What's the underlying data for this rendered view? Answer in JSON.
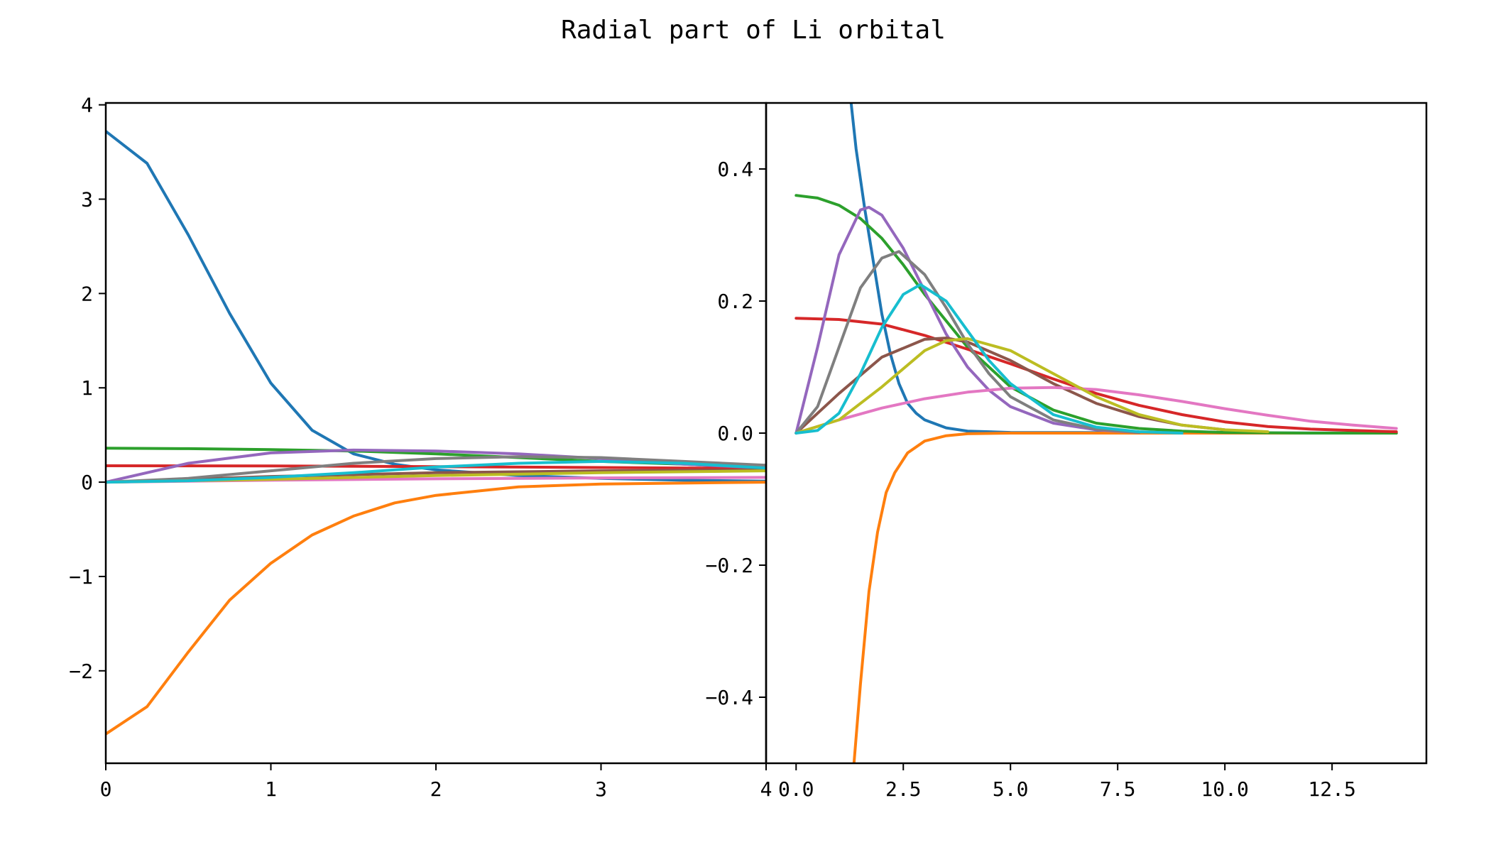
{
  "figure": {
    "title": "Radial part of Li orbital"
  },
  "chart_data": [
    {
      "type": "line",
      "panel": "left",
      "title": "",
      "xlabel": "",
      "ylabel": "",
      "xlim": [
        0,
        4
      ],
      "ylim": [
        -2.98,
        4.02
      ],
      "grid": false,
      "xticks": [
        {
          "value": 0,
          "label": "0"
        },
        {
          "value": 1,
          "label": "1"
        },
        {
          "value": 2,
          "label": "2"
        },
        {
          "value": 3,
          "label": "3"
        },
        {
          "value": 4,
          "label": "4"
        }
      ],
      "yticks": [
        {
          "value": -2,
          "label": "−2"
        },
        {
          "value": -1,
          "label": "−1"
        },
        {
          "value": 0,
          "label": "0"
        },
        {
          "value": 1,
          "label": "1"
        },
        {
          "value": 2,
          "label": "2"
        },
        {
          "value": 3,
          "label": "3"
        },
        {
          "value": 4,
          "label": "4"
        }
      ],
      "series": [
        {
          "color": "#1f77b4",
          "x": [
            0,
            0.25,
            0.5,
            0.75,
            1,
            1.25,
            1.5,
            1.75,
            2,
            2.5,
            3,
            3.5,
            4
          ],
          "y": [
            3.72,
            3.38,
            2.62,
            1.79,
            1.05,
            0.55,
            0.3,
            0.19,
            0.13,
            0.07,
            0.04,
            0.02,
            0.01
          ]
        },
        {
          "color": "#ff7f0e",
          "x": [
            0,
            0.25,
            0.5,
            0.75,
            1,
            1.25,
            1.5,
            1.75,
            2,
            2.5,
            3,
            3.5,
            4
          ],
          "y": [
            -2.67,
            -2.38,
            -1.8,
            -1.25,
            -0.86,
            -0.56,
            -0.36,
            -0.22,
            -0.14,
            -0.05,
            -0.02,
            -0.01,
            0
          ]
        },
        {
          "color": "#2ca02c",
          "x": [
            0,
            0.5,
            1,
            1.5,
            2,
            2.5,
            3,
            3.5,
            4
          ],
          "y": [
            0.36,
            0.355,
            0.345,
            0.33,
            0.3,
            0.26,
            0.22,
            0.19,
            0.15
          ]
        },
        {
          "color": "#d62728",
          "x": [
            0,
            1,
            2,
            3,
            4
          ],
          "y": [
            0.174,
            0.172,
            0.165,
            0.155,
            0.145
          ]
        },
        {
          "color": "#9467bd",
          "x": [
            0,
            0.5,
            1,
            1.5,
            2,
            2.5,
            3,
            3.5,
            4
          ],
          "y": [
            0,
            0.2,
            0.31,
            0.34,
            0.33,
            0.3,
            0.25,
            0.19,
            0.15
          ]
        },
        {
          "color": "#8c564b",
          "x": [
            0,
            1,
            2,
            3,
            4
          ],
          "y": [
            0,
            0.06,
            0.1,
            0.12,
            0.13
          ]
        },
        {
          "color": "#e377c2",
          "x": [
            0,
            1,
            2,
            3,
            4
          ],
          "y": [
            0,
            0.02,
            0.035,
            0.045,
            0.05
          ]
        },
        {
          "color": "#7f7f7f",
          "x": [
            0,
            0.5,
            1,
            1.5,
            2,
            2.5,
            3,
            3.5,
            4
          ],
          "y": [
            0,
            0.04,
            0.12,
            0.2,
            0.25,
            0.27,
            0.26,
            0.22,
            0.18
          ]
        },
        {
          "color": "#bcbd22",
          "x": [
            0,
            1,
            2,
            3,
            4
          ],
          "y": [
            0,
            0.03,
            0.07,
            0.1,
            0.12
          ]
        },
        {
          "color": "#17becf",
          "x": [
            0,
            0.5,
            1,
            1.5,
            2,
            2.5,
            3,
            3.5,
            4
          ],
          "y": [
            0,
            0.015,
            0.05,
            0.1,
            0.16,
            0.2,
            0.22,
            0.2,
            0.15
          ]
        }
      ]
    },
    {
      "type": "line",
      "panel": "right",
      "title": "",
      "xlabel": "",
      "ylabel": "",
      "xlim": [
        -0.7,
        14.7
      ],
      "ylim": [
        -0.5,
        0.5
      ],
      "grid": false,
      "xticks": [
        {
          "value": 0,
          "label": "0.0"
        },
        {
          "value": 2.5,
          "label": "2.5"
        },
        {
          "value": 5,
          "label": "5.0"
        },
        {
          "value": 7.5,
          "label": "7.5"
        },
        {
          "value": 10,
          "label": "10.0"
        },
        {
          "value": 12.5,
          "label": "12.5"
        }
      ],
      "yticks": [
        {
          "value": -0.4,
          "label": "−0.4"
        },
        {
          "value": -0.2,
          "label": "−0.2"
        },
        {
          "value": 0,
          "label": "0.0"
        },
        {
          "value": 0.2,
          "label": "0.2"
        },
        {
          "value": 0.4,
          "label": "0.4"
        }
      ],
      "series": [
        {
          "color": "#1f77b4",
          "x": [
            1.2,
            1.4,
            1.6,
            1.8,
            2,
            2.2,
            2.4,
            2.6,
            2.8,
            3,
            3.5,
            4,
            5,
            14
          ],
          "y": [
            0.55,
            0.43,
            0.34,
            0.26,
            0.18,
            0.12,
            0.075,
            0.045,
            0.03,
            0.02,
            0.008,
            0.003,
            0.001,
            0
          ]
        },
        {
          "color": "#ff7f0e",
          "x": [
            1.35,
            1.5,
            1.7,
            1.9,
            2.1,
            2.3,
            2.6,
            3,
            3.5,
            4,
            5,
            14
          ],
          "y": [
            -0.5,
            -0.38,
            -0.24,
            -0.15,
            -0.09,
            -0.06,
            -0.03,
            -0.012,
            -0.004,
            -0.001,
            0,
            0
          ]
        },
        {
          "color": "#2ca02c",
          "x": [
            0,
            0.5,
            1,
            1.5,
            2,
            2.5,
            3,
            3.5,
            4,
            4.5,
            5,
            6,
            7,
            8,
            9,
            10,
            12,
            14
          ],
          "y": [
            0.36,
            0.356,
            0.345,
            0.325,
            0.295,
            0.255,
            0.21,
            0.17,
            0.13,
            0.1,
            0.07,
            0.035,
            0.015,
            0.007,
            0.003,
            0.001,
            0,
            0
          ]
        },
        {
          "color": "#d62728",
          "x": [
            0,
            1,
            2,
            3,
            4,
            5,
            6,
            7,
            8,
            9,
            10,
            11,
            12,
            14
          ],
          "y": [
            0.174,
            0.172,
            0.165,
            0.148,
            0.127,
            0.105,
            0.082,
            0.06,
            0.042,
            0.028,
            0.017,
            0.01,
            0.006,
            0.002
          ]
        },
        {
          "color": "#9467bd",
          "x": [
            0,
            0.5,
            1,
            1.5,
            1.7,
            2,
            2.5,
            3,
            3.5,
            4,
            4.5,
            5,
            6,
            7,
            8
          ],
          "y": [
            0,
            0.13,
            0.27,
            0.338,
            0.342,
            0.33,
            0.28,
            0.215,
            0.15,
            0.1,
            0.065,
            0.04,
            0.015,
            0.005,
            0.001
          ]
        },
        {
          "color": "#8c564b",
          "x": [
            0,
            1,
            2,
            3,
            3.5,
            4,
            5,
            6,
            7,
            8,
            9,
            10
          ],
          "y": [
            0,
            0.06,
            0.115,
            0.142,
            0.144,
            0.138,
            0.11,
            0.075,
            0.045,
            0.025,
            0.012,
            0.005
          ]
        },
        {
          "color": "#e377c2",
          "x": [
            0,
            1,
            2,
            3,
            4,
            5,
            6,
            7,
            8,
            9,
            10,
            11,
            12,
            13,
            14
          ],
          "y": [
            0,
            0.02,
            0.038,
            0.052,
            0.062,
            0.068,
            0.069,
            0.066,
            0.058,
            0.048,
            0.037,
            0.027,
            0.018,
            0.012,
            0.007
          ]
        },
        {
          "color": "#7f7f7f",
          "x": [
            0,
            0.5,
            1,
            1.5,
            2,
            2.4,
            3,
            3.5,
            4,
            4.5,
            5,
            6,
            7,
            8
          ],
          "y": [
            0,
            0.04,
            0.13,
            0.22,
            0.265,
            0.275,
            0.24,
            0.19,
            0.135,
            0.09,
            0.055,
            0.02,
            0.006,
            0.001
          ]
        },
        {
          "color": "#bcbd22",
          "x": [
            0,
            1,
            2,
            3,
            3.5,
            4,
            5,
            6,
            7,
            8,
            9,
            10,
            11
          ],
          "y": [
            0,
            0.02,
            0.07,
            0.125,
            0.14,
            0.143,
            0.125,
            0.09,
            0.055,
            0.028,
            0.012,
            0.005,
            0.002
          ]
        },
        {
          "color": "#17becf",
          "x": [
            0,
            0.5,
            1,
            1.5,
            2,
            2.5,
            2.9,
            3.5,
            4,
            4.5,
            5,
            6,
            7,
            8,
            9
          ],
          "y": [
            0,
            0.004,
            0.03,
            0.09,
            0.16,
            0.21,
            0.225,
            0.2,
            0.155,
            0.11,
            0.075,
            0.028,
            0.009,
            0.002,
            0
          ]
        }
      ]
    }
  ]
}
